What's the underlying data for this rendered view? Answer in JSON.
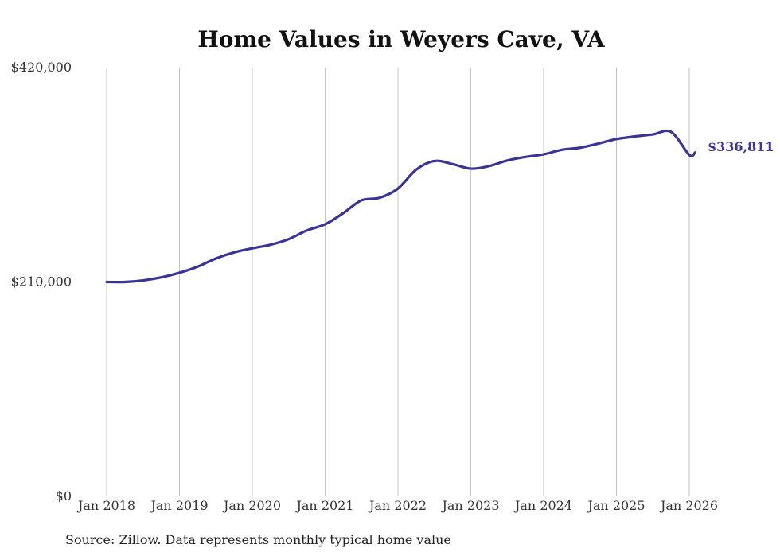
{
  "chart_data": {
    "type": "line",
    "title": "Home Values in Weyers Cave, VA",
    "xlabel": "",
    "ylabel": "",
    "x_start": 2018,
    "x_end": 2026.08,
    "ylim": [
      0,
      420000
    ],
    "y_ticks": [
      0,
      210000,
      420000
    ],
    "y_tick_labels": [
      "$0",
      "$210,000",
      "$420,000"
    ],
    "x_ticks": [
      2018,
      2019,
      2020,
      2021,
      2022,
      2023,
      2024,
      2025,
      2026
    ],
    "x_tick_labels": [
      "Jan 2018",
      "Jan 2019",
      "Jan 2020",
      "Jan 2021",
      "Jan 2022",
      "Jan 2023",
      "Jan 2024",
      "Jan 2025",
      "Jan 2026"
    ],
    "grid": "vertical",
    "series": [
      {
        "name": "Typical home value",
        "color": "#3a3398",
        "x": [
          2018.0,
          2018.25,
          2018.5,
          2018.75,
          2019.0,
          2019.25,
          2019.5,
          2019.75,
          2020.0,
          2020.25,
          2020.5,
          2020.75,
          2021.0,
          2021.25,
          2021.5,
          2021.75,
          2022.0,
          2022.25,
          2022.5,
          2022.75,
          2023.0,
          2023.25,
          2023.5,
          2023.75,
          2024.0,
          2024.25,
          2024.5,
          2024.75,
          2025.0,
          2025.25,
          2025.5,
          2025.75,
          2026.0,
          2026.08
        ],
        "values": [
          210000,
          210000,
          211500,
          214500,
          219000,
          225000,
          233000,
          239000,
          243000,
          246500,
          252000,
          260500,
          266500,
          277500,
          290000,
          292500,
          301500,
          320000,
          328500,
          325500,
          321000,
          323500,
          329000,
          332500,
          335000,
          339500,
          341500,
          345500,
          350000,
          352500,
          354500,
          357000,
          334500,
          336811
        ]
      }
    ],
    "end_label": "$336,811"
  },
  "source_note": "Source: Zillow. Data represents monthly typical home value"
}
